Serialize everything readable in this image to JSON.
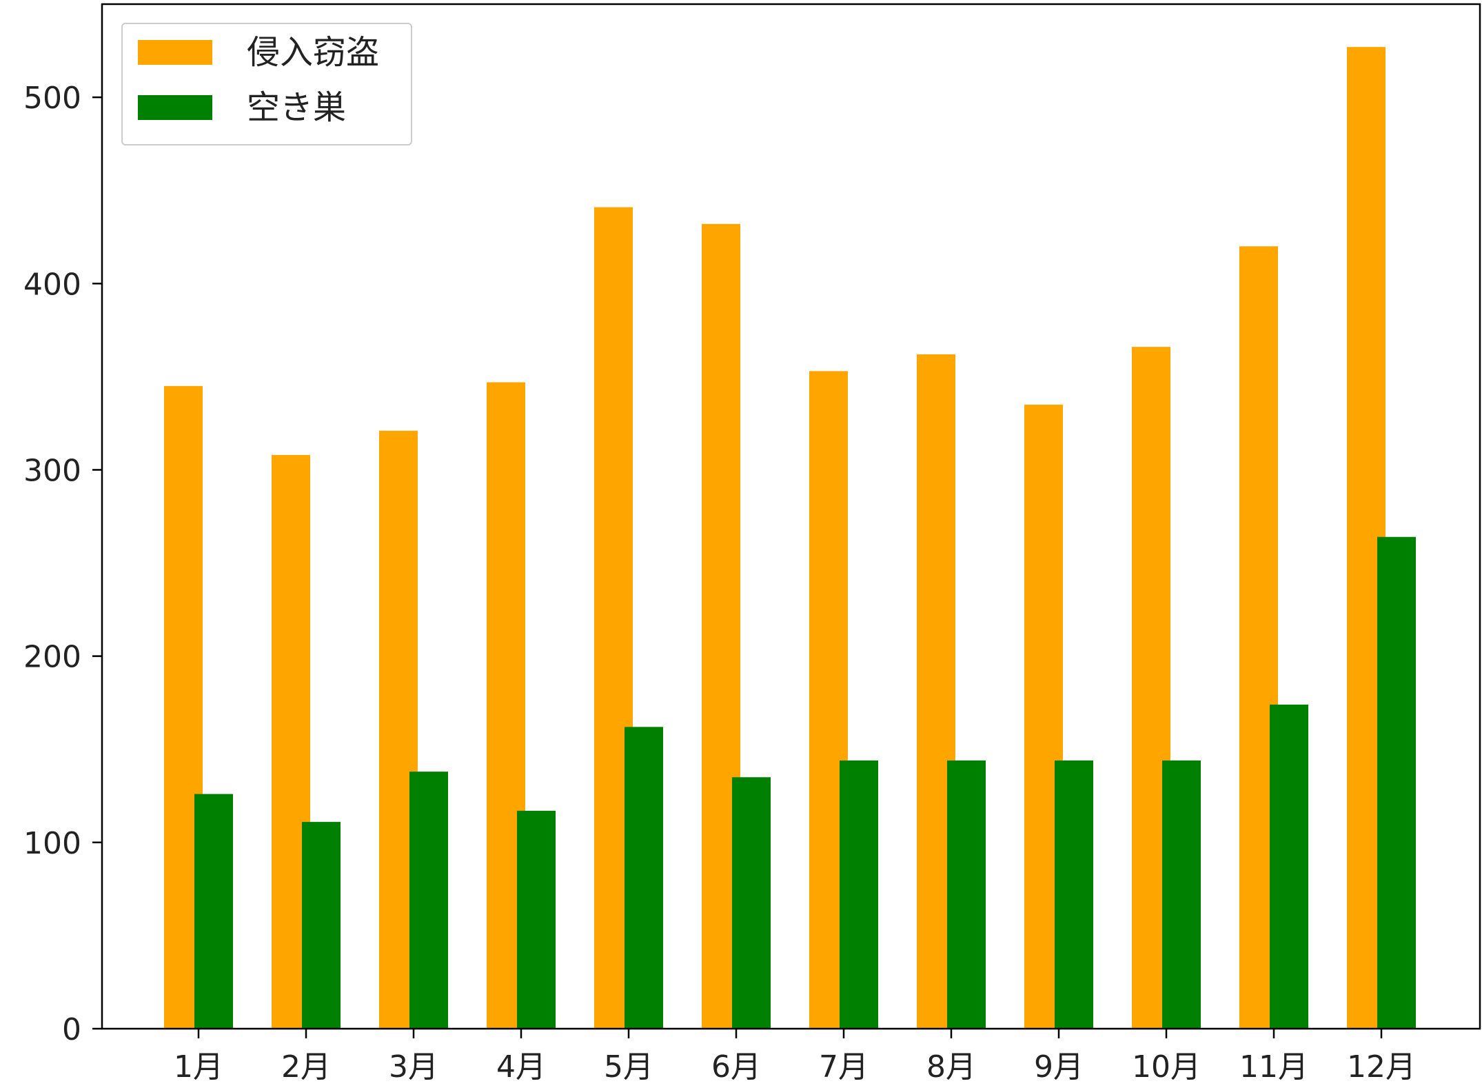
{
  "chart_data": {
    "type": "bar",
    "title": "",
    "xlabel": "",
    "ylabel": "",
    "categories": [
      "1月",
      "2月",
      "3月",
      "4月",
      "5月",
      "6月",
      "7月",
      "8月",
      "9月",
      "10月",
      "11月",
      "12月"
    ],
    "series": [
      {
        "name": "侵入窃盗",
        "color": "#FFA500",
        "values": [
          345,
          308,
          321,
          347,
          441,
          432,
          353,
          362,
          335,
          366,
          420,
          527
        ]
      },
      {
        "name": "空き巣",
        "color": "#008000",
        "values": [
          126,
          111,
          138,
          117,
          162,
          135,
          144,
          144,
          144,
          144,
          174,
          264
        ]
      }
    ],
    "ylim": [
      0,
      550
    ],
    "yticks": [
      "0",
      "100",
      "200",
      "300",
      "400",
      "500"
    ],
    "legend": "top-left",
    "grid": false
  }
}
